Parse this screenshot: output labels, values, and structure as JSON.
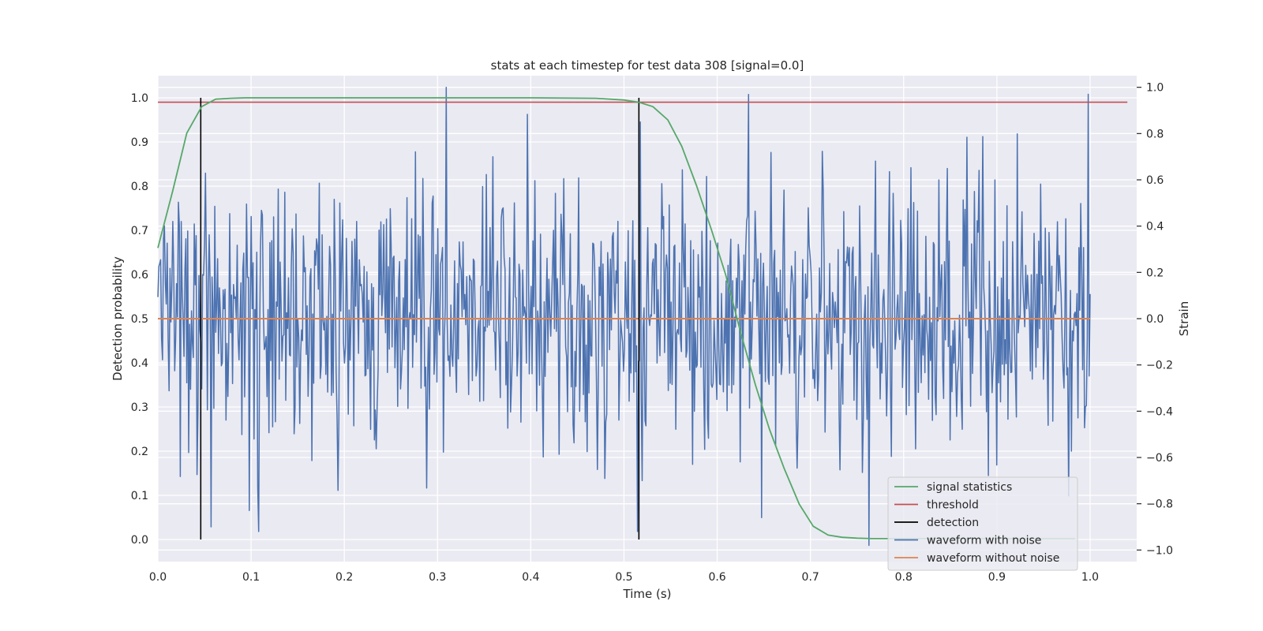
{
  "chart_data": {
    "type": "line",
    "title": "stats at each timestep for test data 308 [signal=0.0]",
    "xlabel": "Time (s)",
    "ylabel_left": "Detection probability",
    "ylabel_right": "Strain",
    "xlim": [
      0.0,
      1.05
    ],
    "ylim_left": [
      -0.05,
      1.05
    ],
    "ylim_right": [
      -1.05,
      1.05
    ],
    "x_ticks": [
      0.0,
      0.1,
      0.2,
      0.3,
      0.4,
      0.5,
      0.6,
      0.7,
      0.8,
      0.9,
      1.0
    ],
    "x_tick_labels": [
      "0.0",
      "0.1",
      "0.2",
      "0.3",
      "0.4",
      "0.5",
      "0.6",
      "0.7",
      "0.8",
      "0.9",
      "1.0"
    ],
    "y_left_ticks": [
      0.0,
      0.1,
      0.2,
      0.3,
      0.4,
      0.5,
      0.6,
      0.7,
      0.8,
      0.9,
      1.0
    ],
    "y_left_tick_labels": [
      "0.0",
      "0.1",
      "0.2",
      "0.3",
      "0.4",
      "0.5",
      "0.6",
      "0.7",
      "0.8",
      "0.9",
      "1.0"
    ],
    "y_right_ticks": [
      -1.0,
      -0.8,
      -0.6,
      -0.4,
      -0.2,
      0.0,
      0.2,
      0.4,
      0.6,
      0.8,
      1.0
    ],
    "y_right_tick_labels": [
      "−1.0",
      "−0.8",
      "−0.6",
      "−0.4",
      "−0.2",
      "0.0",
      "0.2",
      "0.4",
      "0.6",
      "0.8",
      "1.0"
    ],
    "grid": true,
    "legend_position": "lower-right",
    "series": [
      {
        "name": "signal statistics",
        "axis": "left",
        "color": "#55a868",
        "x": [
          0.0,
          0.016,
          0.031,
          0.047,
          0.062,
          0.078,
          0.094,
          0.109,
          0.125,
          0.2,
          0.3,
          0.4,
          0.47,
          0.5,
          0.516,
          0.531,
          0.547,
          0.562,
          0.578,
          0.594,
          0.609,
          0.625,
          0.641,
          0.656,
          0.672,
          0.688,
          0.703,
          0.719,
          0.734,
          0.75,
          0.766,
          0.8,
          0.9,
          0.984
        ],
        "y": [
          0.66,
          0.79,
          0.92,
          0.98,
          0.997,
          0.999,
          1.0,
          1.0,
          1.0,
          1.0,
          1.0,
          1.0,
          0.999,
          0.995,
          0.99,
          0.98,
          0.95,
          0.89,
          0.8,
          0.7,
          0.6,
          0.47,
          0.35,
          0.25,
          0.16,
          0.08,
          0.03,
          0.01,
          0.005,
          0.003,
          0.002,
          0.002,
          0.002,
          0.002
        ]
      },
      {
        "name": "threshold",
        "axis": "left",
        "color": "#c44e52",
        "x": [
          0.0,
          1.04
        ],
        "y": [
          0.99,
          0.99
        ]
      },
      {
        "name": "detection",
        "axis": "left",
        "color": "#000000",
        "type": "vlines",
        "x": [
          0.046,
          0.516
        ],
        "ymin": 0.0,
        "ymax": 1.0
      },
      {
        "name": "waveform with noise",
        "axis": "right",
        "color": "#4c72b0",
        "type": "noise",
        "x_start": 0.0,
        "x_end": 1.0,
        "samples": 1000,
        "mean": 0.0,
        "std": 0.3,
        "min": -0.98,
        "max": 1.0,
        "notable_points": [
          {
            "x": 0.309,
            "y": 1.0
          },
          {
            "x": 0.998,
            "y": 0.97
          },
          {
            "x": 0.057,
            "y": -0.9
          },
          {
            "x": 0.108,
            "y": -0.92
          },
          {
            "x": 0.515,
            "y": -0.92
          },
          {
            "x": 0.763,
            "y": -0.98
          }
        ]
      },
      {
        "name": "waveform without noise",
        "axis": "right",
        "color": "#dd8452",
        "x": [
          0.0,
          1.0
        ],
        "y": [
          0.0,
          0.0
        ]
      }
    ]
  }
}
